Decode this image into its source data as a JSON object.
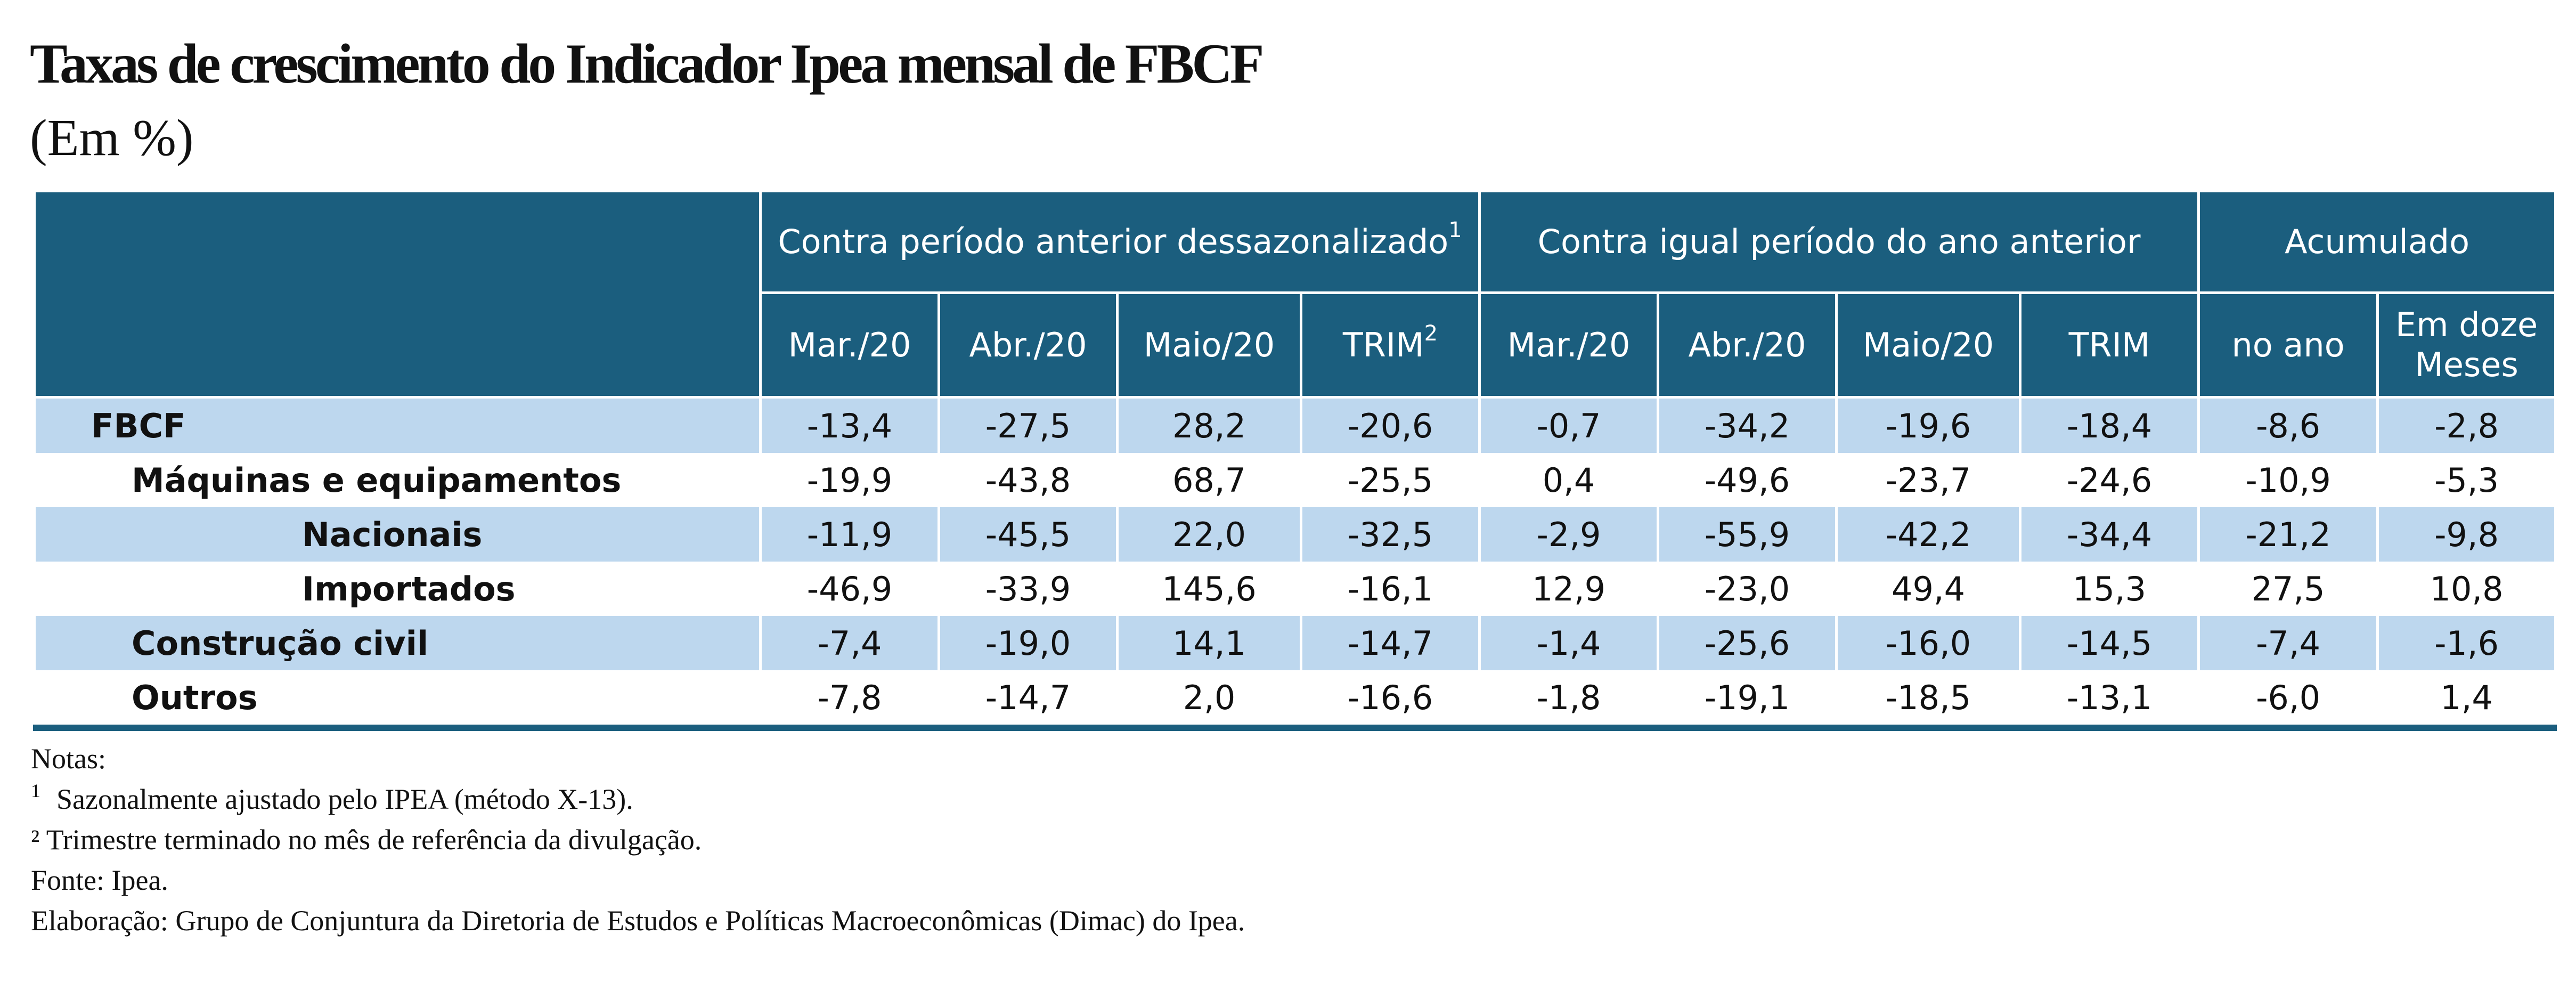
{
  "title": "Taxas de crescimento do Indicador Ipea mensal de FBCF",
  "subtitle": "(Em %)",
  "table": {
    "group_headers": [
      {
        "label": "Contra período anterior dessazonalizado",
        "sup": "1"
      },
      {
        "label": "Contra igual período do ano anterior"
      },
      {
        "label": "Acumulado"
      }
    ],
    "sub_headers": [
      {
        "label": "Mar./20"
      },
      {
        "label": "Abr./20"
      },
      {
        "label": "Maio/20"
      },
      {
        "label": "TRIM",
        "sup": "2"
      },
      {
        "label": "Mar./20"
      },
      {
        "label": "Abr./20"
      },
      {
        "label": "Maio/20"
      },
      {
        "label": "TRIM"
      },
      {
        "label": "no ano"
      },
      {
        "label": "Em doze Meses"
      }
    ],
    "rows": [
      {
        "label": "FBCF",
        "values": [
          "-13,4",
          "-27,5",
          "28,2",
          "-20,6",
          "-0,7",
          "-34,2",
          "-19,6",
          "-18,4",
          "-8,6",
          "-2,8"
        ]
      },
      {
        "label": "Máquinas e equipamentos",
        "values": [
          "-19,9",
          "-43,8",
          "68,7",
          "-25,5",
          "0,4",
          "-49,6",
          "-23,7",
          "-24,6",
          "-10,9",
          "-5,3"
        ]
      },
      {
        "label": "Nacionais",
        "values": [
          "-11,9",
          "-45,5",
          "22,0",
          "-32,5",
          "-2,9",
          "-55,9",
          "-42,2",
          "-34,4",
          "-21,2",
          "-9,8"
        ]
      },
      {
        "label": "Importados",
        "values": [
          "-46,9",
          "-33,9",
          "145,6",
          "-16,1",
          "12,9",
          "-23,0",
          "49,4",
          "15,3",
          "27,5",
          "10,8"
        ]
      },
      {
        "label": "Construção civil",
        "values": [
          "-7,4",
          "-19,0",
          "14,1",
          "-14,7",
          "-1,4",
          "-25,6",
          "-16,0",
          "-14,5",
          "-7,4",
          "-1,6"
        ]
      },
      {
        "label": "Outros",
        "values": [
          "-7,8",
          "-14,7",
          "2,0",
          "-16,6",
          "-1,8",
          "-19,1",
          "-18,5",
          "-13,1",
          "-6,0",
          "1,4"
        ]
      }
    ]
  },
  "notes": {
    "heading": "Notas:",
    "note1_marker": "1",
    "note1": "Sazonalmente ajustado pelo IPEA (método X-13).",
    "note2": "² Trimestre terminado no mês de referência da divulgação.",
    "source": "Fonte: Ipea.",
    "elaboration": "Elaboração: Grupo de Conjuntura da Diretoria de Estudos e Políticas Macroeconômicas (Dimac) do Ipea."
  },
  "colors": {
    "header_bg": "#1b5e7e",
    "shaded_row_bg": "#bdd7ee"
  }
}
